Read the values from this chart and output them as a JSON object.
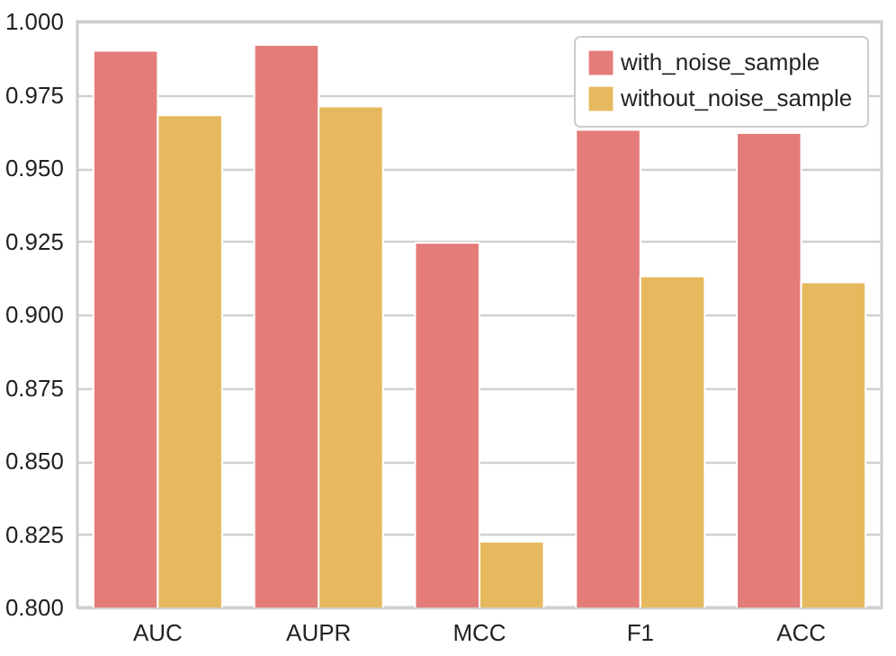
{
  "chart_data": {
    "type": "bar",
    "categories": [
      "AUC",
      "AUPR",
      "MCC",
      "F1",
      "ACC"
    ],
    "series": [
      {
        "name": "with_noise_sample",
        "color": "#e47c79",
        "values": [
          0.99,
          0.992,
          0.9245,
          0.963,
          0.962
        ]
      },
      {
        "name": "without_noise_sample",
        "color": "#e6b95e",
        "values": [
          0.968,
          0.971,
          0.8225,
          0.913,
          0.911
        ]
      }
    ],
    "ylim": [
      0.8,
      1.0
    ],
    "yticks": [
      {
        "value": 0.8,
        "label": "0.800"
      },
      {
        "value": 0.825,
        "label": "0.825"
      },
      {
        "value": 0.85,
        "label": "0.850"
      },
      {
        "value": 0.875,
        "label": "0.875"
      },
      {
        "value": 0.9,
        "label": "0.900"
      },
      {
        "value": 0.925,
        "label": "0.925"
      },
      {
        "value": 0.95,
        "label": "0.950"
      },
      {
        "value": 0.975,
        "label": "0.975"
      },
      {
        "value": 1.0,
        "label": "1.000"
      }
    ],
    "grid": "y",
    "legend": "top right"
  }
}
